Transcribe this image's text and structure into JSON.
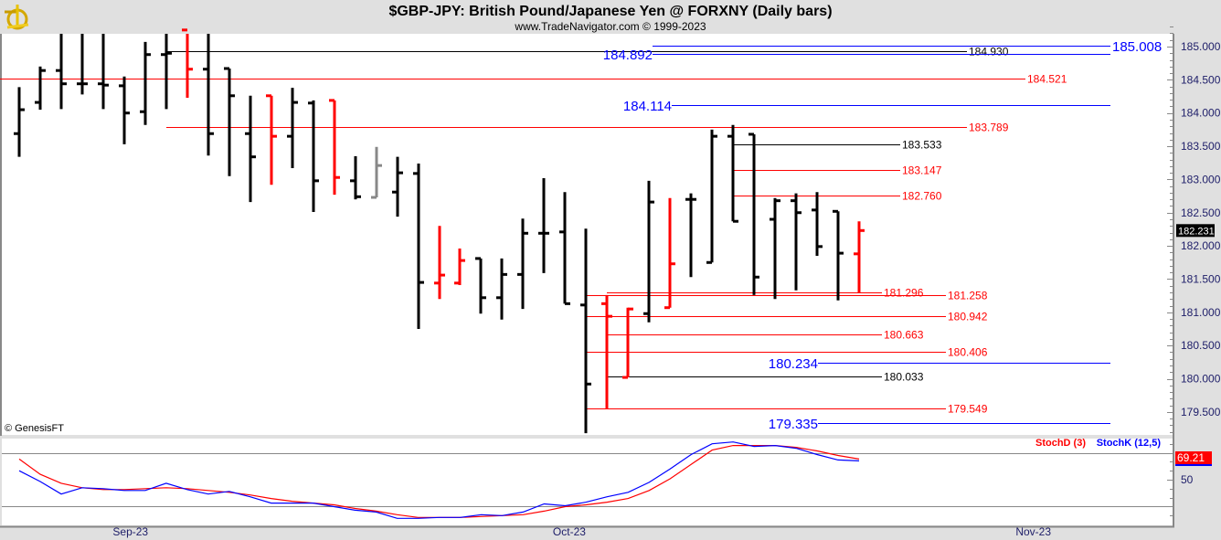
{
  "header": {
    "title": "$GBP-JPY:  British Pound/Japanese Yen @ FORXNY  (Daily bars)",
    "subtitle": "www.TradeNavigator.com © 1999-2023",
    "logo_icon": "sextant-logo-icon"
  },
  "copyright": "© GenesisFT",
  "colors": {
    "up": "#000000",
    "down": "#ff0000",
    "neutral": "#888888",
    "blue": "#0000ff",
    "red": "#ff0000",
    "black": "#000000",
    "panel_bg": "#e0e0e0"
  },
  "chart_data": [
    {
      "type": "ohlc",
      "title": "$GBP-JPY:  British Pound/Japanese Yen @ FORXNY  (Daily bars)",
      "ylim": [
        179.2,
        185.3
      ],
      "y_ticks": [
        "185.000",
        "184.500",
        "184.000",
        "183.500",
        "183.000",
        "182.500",
        "182.000",
        "181.500",
        "181.000",
        "180.500",
        "180.000",
        "179.500"
      ],
      "last_price_label": "182.231",
      "x_labels": [
        {
          "label": "Sep-23",
          "index": 5.3
        },
        {
          "label": "Oct-23",
          "index": 26.2
        },
        {
          "label": "Nov-23",
          "index": 48.3
        }
      ],
      "bars": [
        {
          "o": 183.69,
          "h": 184.39,
          "l": 183.34,
          "c": 184.05,
          "color": "up"
        },
        {
          "o": 184.16,
          "h": 184.7,
          "l": 184.05,
          "c": 184.64,
          "color": "up"
        },
        {
          "o": 184.64,
          "h": 185.25,
          "l": 184.06,
          "c": 184.44,
          "color": "up"
        },
        {
          "o": 184.44,
          "h": 185.25,
          "l": 184.28,
          "c": 184.44,
          "color": "up"
        },
        {
          "o": 184.44,
          "h": 185.25,
          "l": 184.06,
          "c": 184.42,
          "color": "up"
        },
        {
          "o": 184.41,
          "h": 184.55,
          "l": 183.53,
          "c": 184.0,
          "color": "up"
        },
        {
          "o": 184.02,
          "h": 185.07,
          "l": 183.82,
          "c": 184.88,
          "color": "up"
        },
        {
          "o": 184.88,
          "h": 185.25,
          "l": 184.06,
          "c": 184.9,
          "color": "up"
        },
        {
          "o": 185.25,
          "h": 185.25,
          "l": 184.23,
          "c": 184.66,
          "color": "down"
        },
        {
          "o": 184.66,
          "h": 185.25,
          "l": 183.36,
          "c": 183.69,
          "color": "up"
        },
        {
          "o": 184.67,
          "h": 184.67,
          "l": 183.05,
          "c": 184.26,
          "color": "up"
        },
        {
          "o": 183.69,
          "h": 184.26,
          "l": 182.66,
          "c": 183.34,
          "color": "up"
        },
        {
          "o": 184.26,
          "h": 184.26,
          "l": 182.92,
          "c": 183.65,
          "color": "down"
        },
        {
          "o": 183.65,
          "h": 184.38,
          "l": 183.17,
          "c": 184.16,
          "color": "up"
        },
        {
          "o": 184.15,
          "h": 184.19,
          "l": 182.51,
          "c": 182.98,
          "color": "up"
        },
        {
          "o": 184.19,
          "h": 184.19,
          "l": 182.77,
          "c": 183.03,
          "color": "down"
        },
        {
          "o": 182.98,
          "h": 183.35,
          "l": 182.7,
          "c": 182.74,
          "color": "up"
        },
        {
          "o": 182.73,
          "h": 183.49,
          "l": 182.73,
          "c": 183.21,
          "color": "neutral"
        },
        {
          "o": 182.81,
          "h": 183.34,
          "l": 182.44,
          "c": 183.1,
          "color": "up"
        },
        {
          "o": 183.09,
          "h": 183.24,
          "l": 180.75,
          "c": 181.45,
          "color": "up"
        },
        {
          "o": 181.44,
          "h": 182.3,
          "l": 181.2,
          "c": 181.56,
          "color": "down"
        },
        {
          "o": 181.44,
          "h": 181.96,
          "l": 181.41,
          "c": 181.78,
          "color": "down"
        },
        {
          "o": 181.81,
          "h": 181.81,
          "l": 180.98,
          "c": 181.22,
          "color": "up"
        },
        {
          "o": 181.22,
          "h": 181.81,
          "l": 180.89,
          "c": 181.57,
          "color": "up"
        },
        {
          "o": 181.57,
          "h": 182.41,
          "l": 181.05,
          "c": 182.19,
          "color": "up"
        },
        {
          "o": 182.19,
          "h": 183.02,
          "l": 181.59,
          "c": 182.19,
          "color": "up"
        },
        {
          "o": 182.21,
          "h": 182.81,
          "l": 181.13,
          "c": 181.13,
          "color": "up"
        },
        {
          "o": 181.11,
          "h": 182.26,
          "l": 179.18,
          "c": 179.92,
          "color": "up"
        },
        {
          "o": 181.13,
          "h": 181.26,
          "l": 179.55,
          "c": 180.94,
          "color": "down"
        },
        {
          "o": 180.02,
          "h": 181.07,
          "l": 180.02,
          "c": 181.05,
          "color": "down"
        },
        {
          "o": 180.98,
          "h": 182.98,
          "l": 180.85,
          "c": 182.66,
          "color": "up"
        },
        {
          "o": 181.07,
          "h": 182.72,
          "l": 181.07,
          "c": 181.73,
          "color": "down"
        },
        {
          "o": 182.7,
          "h": 182.79,
          "l": 181.53,
          "c": 182.7,
          "color": "up"
        },
        {
          "o": 181.75,
          "h": 183.75,
          "l": 181.75,
          "c": 183.65,
          "color": "up"
        },
        {
          "o": 183.65,
          "h": 183.82,
          "l": 182.37,
          "c": 182.37,
          "color": "up"
        },
        {
          "o": 183.68,
          "h": 183.68,
          "l": 181.26,
          "c": 181.53,
          "color": "up"
        },
        {
          "o": 182.4,
          "h": 182.72,
          "l": 181.2,
          "c": 182.68,
          "color": "up"
        },
        {
          "o": 182.68,
          "h": 182.79,
          "l": 181.33,
          "c": 182.5,
          "color": "up"
        },
        {
          "o": 182.54,
          "h": 182.81,
          "l": 181.85,
          "c": 181.99,
          "color": "up"
        },
        {
          "o": 182.52,
          "h": 182.52,
          "l": 181.18,
          "c": 181.89,
          "color": "up"
        },
        {
          "o": 181.88,
          "h": 182.37,
          "l": 181.3,
          "c": 182.231,
          "color": "down"
        }
      ],
      "levels": [
        {
          "price": 185.008,
          "label": "185.008",
          "color": "blue"
        },
        {
          "price": 184.93,
          "label": "184.930",
          "color": "black"
        },
        {
          "price": 184.892,
          "label": "184.892",
          "color": "blue"
        },
        {
          "price": 184.521,
          "label": "184.521",
          "color": "red"
        },
        {
          "price": 184.114,
          "label": "184.114",
          "color": "blue"
        },
        {
          "price": 183.789,
          "label": "183.789",
          "color": "red"
        },
        {
          "price": 183.533,
          "label": "183.533",
          "color": "black"
        },
        {
          "price": 183.147,
          "label": "183.147",
          "color": "red"
        },
        {
          "price": 182.76,
          "label": "182.760",
          "color": "red"
        },
        {
          "price": 181.296,
          "label": "181.296",
          "color": "red"
        },
        {
          "price": 181.258,
          "label": "181.258",
          "color": "red"
        },
        {
          "price": 180.942,
          "label": "180.942",
          "color": "red"
        },
        {
          "price": 180.663,
          "label": "180.663",
          "color": "red"
        },
        {
          "price": 180.406,
          "label": "180.406",
          "color": "red"
        },
        {
          "price": 180.234,
          "label": "180.234",
          "color": "blue"
        },
        {
          "price": 180.033,
          "label": "180.033",
          "color": "black"
        },
        {
          "price": 179.549,
          "label": "179.549",
          "color": "red"
        },
        {
          "price": 179.335,
          "label": "179.335",
          "color": "blue"
        }
      ]
    },
    {
      "type": "line",
      "title": "Stochastic",
      "ylim": [
        0,
        100
      ],
      "y_ticks": [
        "50"
      ],
      "gridlines": [
        80,
        20
      ],
      "last_value_label": "69.21",
      "series": [
        {
          "name": "StochD (3)",
          "color": "red",
          "values": [
            73,
            56,
            46,
            41,
            39,
            39,
            40,
            41,
            40,
            38,
            36,
            33,
            29,
            26,
            24,
            22,
            18,
            15,
            11,
            8,
            8,
            8,
            9,
            10,
            11,
            15,
            20,
            22,
            25,
            29,
            38,
            51,
            67,
            83,
            88,
            88,
            88,
            86,
            82,
            77,
            73
          ]
        },
        {
          "name": "StochK (12,5)",
          "color": "blue",
          "values": [
            60,
            48,
            34,
            41,
            40,
            38,
            38,
            46,
            39,
            34,
            37,
            31,
            24,
            24,
            24,
            20,
            16,
            14,
            7,
            7,
            8,
            8,
            11,
            10,
            14,
            23,
            21,
            25,
            31,
            36,
            47,
            62,
            78,
            90,
            92,
            87,
            88,
            85,
            78,
            72,
            71
          ]
        }
      ]
    }
  ]
}
